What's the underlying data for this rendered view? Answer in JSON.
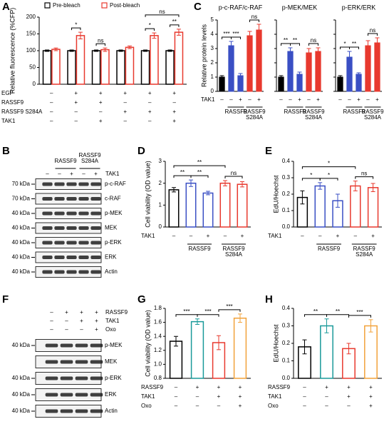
{
  "panel_labels": [
    "A",
    "B",
    "C",
    "D",
    "E",
    "F",
    "G",
    "H"
  ],
  "chart_data": [
    {
      "type": "grouped_bar",
      "ylabel": "Relative fluorescence (%CFP)",
      "ylim": [
        0,
        200
      ],
      "yticks": [
        0,
        50,
        100,
        150,
        200
      ],
      "bar_style": "outline",
      "legend": "top",
      "series": [
        {
          "name": "Pre-bleach",
          "color": "#000000",
          "values": [
            100,
            100,
            100,
            100,
            100,
            100
          ],
          "errors": [
            2,
            2,
            2,
            2,
            2,
            2
          ]
        },
        {
          "name": "Post-bleach",
          "color": "#e8392e",
          "values": [
            104,
            145,
            103,
            110,
            145,
            155
          ],
          "errors": [
            4,
            10,
            5,
            4,
            8,
            9
          ]
        }
      ],
      "rows": [
        {
          "label": "EGF",
          "values": [
            "–",
            "+",
            "+",
            "+",
            "+",
            "+"
          ]
        },
        {
          "label": "RASSF9",
          "values": [
            "–",
            "+",
            "+",
            "–",
            "–",
            "–"
          ]
        },
        {
          "label": "RASSF9 S284A",
          "values": [
            "–",
            "–",
            "–",
            "+",
            "+",
            "+"
          ]
        },
        {
          "label": "TAK1",
          "values": [
            "–",
            "–",
            "+",
            "–",
            "–",
            "+"
          ]
        }
      ],
      "comparisons": [
        {
          "between": [
            1,
            1
          ],
          "label": "*"
        },
        {
          "between": [
            2,
            2
          ],
          "label": "ns"
        },
        {
          "between": [
            4,
            4
          ],
          "label": "*"
        },
        {
          "between": [
            5,
            5
          ],
          "label": "**"
        },
        {
          "between": [
            4,
            5
          ],
          "label": "ns"
        }
      ]
    },
    {
      "type": "bar",
      "title": "p-c-RAF/c-RAF",
      "ylabel": "Relative protein levels",
      "ylim": [
        0,
        5
      ],
      "yticks": [
        0,
        1,
        2,
        3,
        4,
        5
      ],
      "tick_labels": true,
      "bar_style": "filled",
      "colors": [
        "#000000",
        "#3a4fc4",
        "#3a4fc4",
        "#e8392e",
        "#e8392e"
      ],
      "values": [
        1.0,
        3.2,
        1.1,
        3.9,
        4.3
      ],
      "errors": [
        0.1,
        0.3,
        0.15,
        0.3,
        0.4
      ],
      "rows": [
        {
          "label": "TAK1",
          "values": [
            "–",
            "–",
            "+",
            "–",
            "+"
          ]
        }
      ],
      "groups": [
        {
          "label": [
            "RASSF9"
          ],
          "span": [
            1,
            2
          ]
        },
        {
          "label": [
            "RASSF9",
            "S284A"
          ],
          "span": [
            3,
            4
          ]
        }
      ],
      "comparisons": [
        {
          "between": [
            0,
            1
          ],
          "label": "***"
        },
        {
          "between": [
            1,
            2
          ],
          "label": "***"
        },
        {
          "between": [
            3,
            4
          ],
          "label": "ns"
        }
      ]
    },
    {
      "type": "bar",
      "title": "p-MEK/MEK",
      "ylim": [
        0,
        5
      ],
      "yticks": [
        0,
        1,
        2,
        3,
        4,
        5
      ],
      "tick_labels": false,
      "bar_style": "filled",
      "colors": [
        "#000000",
        "#3a4fc4",
        "#3a4fc4",
        "#e8392e",
        "#e8392e"
      ],
      "values": [
        1.0,
        2.8,
        1.2,
        2.7,
        2.8
      ],
      "errors": [
        0.1,
        0.25,
        0.15,
        0.3,
        0.25
      ],
      "rows": [
        {
          "values": [
            "–",
            "–",
            "+",
            "–",
            "+"
          ]
        }
      ],
      "groups": [
        {
          "label": [
            "RASSF9"
          ],
          "span": [
            1,
            2
          ]
        },
        {
          "label": [
            "RASSF9",
            "S284A"
          ],
          "span": [
            3,
            4
          ]
        }
      ],
      "comparisons": [
        {
          "between": [
            0,
            1
          ],
          "label": "**"
        },
        {
          "between": [
            1,
            2
          ],
          "label": "**"
        },
        {
          "between": [
            3,
            4
          ],
          "label": "ns"
        }
      ]
    },
    {
      "type": "bar",
      "title": "p-ERK/ERK",
      "ylim": [
        0,
        5
      ],
      "yticks": [
        0,
        1,
        2,
        3,
        4,
        5
      ],
      "tick_labels": false,
      "bar_style": "filled",
      "colors": [
        "#000000",
        "#3a4fc4",
        "#3a4fc4",
        "#e8392e",
        "#e8392e"
      ],
      "values": [
        1.0,
        2.4,
        1.2,
        3.2,
        3.4
      ],
      "errors": [
        0.1,
        0.4,
        0.1,
        0.35,
        0.35
      ],
      "rows": [
        {
          "values": [
            "–",
            "–",
            "+",
            "–",
            "+"
          ]
        }
      ],
      "groups": [
        {
          "label": [
            "RASSF9"
          ],
          "span": [
            1,
            2
          ]
        },
        {
          "label": [
            "RASSF9",
            "S284A"
          ],
          "span": [
            3,
            4
          ]
        }
      ],
      "comparisons": [
        {
          "between": [
            0,
            1
          ],
          "label": "*"
        },
        {
          "between": [
            1,
            2
          ],
          "label": "**"
        },
        {
          "between": [
            3,
            4
          ],
          "label": "ns"
        }
      ]
    },
    {
      "type": "bar",
      "ylabel": "Cell viability (OD value)",
      "ylim": [
        0,
        3
      ],
      "yticks": [
        0,
        1,
        2,
        3
      ],
      "tick_labels": true,
      "bar_style": "outline",
      "colors": [
        "#000000",
        "#3a4fc4",
        "#3a4fc4",
        "#e8392e",
        "#e8392e"
      ],
      "values": [
        1.7,
        2.0,
        1.55,
        2.0,
        1.95
      ],
      "errors": [
        0.1,
        0.15,
        0.08,
        0.12,
        0.12
      ],
      "rows": [
        {
          "label": "TAK1",
          "values": [
            "–",
            "–",
            "+",
            "–",
            "+"
          ]
        }
      ],
      "groups": [
        {
          "label": [
            "RASSF9"
          ],
          "span": [
            1,
            2
          ]
        },
        {
          "label": [
            "RASSF9",
            "S284A"
          ],
          "span": [
            3,
            4
          ]
        }
      ],
      "comparisons": [
        {
          "between": [
            0,
            1
          ],
          "label": "**"
        },
        {
          "between": [
            1,
            2
          ],
          "label": "**"
        },
        {
          "between": [
            0,
            3
          ],
          "label": "**"
        },
        {
          "between": [
            3,
            4
          ],
          "label": "ns"
        }
      ]
    },
    {
      "type": "bar",
      "ylabel": "EdU/Hoechst",
      "ylim": [
        0,
        0.4
      ],
      "yticks": [
        {
          "value": 0,
          "label": "0.0"
        },
        0.1,
        0.2,
        0.3,
        0.4
      ],
      "tick_labels": true,
      "bar_style": "outline",
      "colors": [
        "#000000",
        "#3a4fc4",
        "#3a4fc4",
        "#e8392e",
        "#e8392e"
      ],
      "values": [
        0.18,
        0.25,
        0.16,
        0.25,
        0.24
      ],
      "errors": [
        0.04,
        0.02,
        0.04,
        0.03,
        0.025
      ],
      "rows": [
        {
          "label": "TAK1",
          "values": [
            "–",
            "–",
            "+",
            "–",
            "+"
          ]
        }
      ],
      "groups": [
        {
          "label": [
            "RASSF9"
          ],
          "span": [
            1,
            2
          ]
        },
        {
          "label": [
            "RASSF9",
            "S284A"
          ],
          "span": [
            3,
            4
          ]
        }
      ],
      "comparisons": [
        {
          "between": [
            0,
            1
          ],
          "label": "*"
        },
        {
          "between": [
            1,
            2
          ],
          "label": "*"
        },
        {
          "between": [
            0,
            3
          ],
          "label": "*"
        },
        {
          "between": [
            3,
            4
          ],
          "label": "ns"
        }
      ]
    },
    {
      "type": "bar",
      "ylabel": "Cell viability (OD value)",
      "ylim": [
        0.8,
        1.8
      ],
      "yticks": [
        0.8,
        {
          "value": 1,
          "label": "1.0"
        },
        1.2,
        1.4,
        1.6,
        1.8
      ],
      "tick_labels": true,
      "bar_style": "outline",
      "colors": [
        "#000000",
        "#1a9a9a",
        "#e8392e",
        "#f2a23a"
      ],
      "values": [
        1.33,
        1.61,
        1.31,
        1.66
      ],
      "errors": [
        0.07,
        0.04,
        0.1,
        0.06
      ],
      "rows": [
        {
          "label": "RASSF9",
          "values": [
            "–",
            "+",
            "+",
            "+"
          ]
        },
        {
          "label": "TAK1",
          "values": [
            "–",
            "–",
            "+",
            "+"
          ]
        },
        {
          "label": "Oxo",
          "values": [
            "–",
            "–",
            "–",
            "+"
          ]
        }
      ],
      "comparisons": [
        {
          "between": [
            0,
            1
          ],
          "label": "***"
        },
        {
          "between": [
            1,
            2
          ],
          "label": "***"
        },
        {
          "between": [
            2,
            3
          ],
          "label": "***"
        }
      ]
    },
    {
      "type": "bar",
      "ylabel": "EdU/Hoechst",
      "ylim": [
        0,
        0.4
      ],
      "yticks": [
        {
          "value": 0,
          "label": "0.0"
        },
        0.1,
        0.2,
        0.3,
        0.4
      ],
      "tick_labels": true,
      "bar_style": "outline",
      "colors": [
        "#000000",
        "#1a9a9a",
        "#e8392e",
        "#f2a23a"
      ],
      "values": [
        0.18,
        0.3,
        0.17,
        0.3
      ],
      "errors": [
        0.04,
        0.04,
        0.03,
        0.035
      ],
      "rows": [
        {
          "label": "RASSF9",
          "values": [
            "–",
            "+",
            "+",
            "+"
          ]
        },
        {
          "label": "TAK1",
          "values": [
            "–",
            "–",
            "+",
            "+"
          ]
        },
        {
          "label": "Oxo",
          "values": [
            "–",
            "–",
            "–",
            "+"
          ]
        }
      ],
      "comparisons": [
        {
          "between": [
            0,
            1
          ],
          "label": "**"
        },
        {
          "between": [
            1,
            2
          ],
          "label": "**"
        },
        {
          "between": [
            2,
            3
          ],
          "label": "***"
        }
      ]
    }
  ],
  "blots": [
    {
      "headers": [
        {
          "label": [
            "RASSF9"
          ],
          "span": [
            1,
            2
          ]
        },
        {
          "label": [
            "RASSF9",
            "S284A"
          ],
          "span": [
            3,
            4
          ]
        }
      ],
      "conditions": [
        {
          "label": "TAK1",
          "values": [
            "–",
            "–",
            "+",
            "–",
            "+"
          ]
        }
      ],
      "rows": [
        {
          "kda": "70 kDa",
          "protein": "p-c-RAF"
        },
        {
          "kda": "70 kDa",
          "protein": "c-RAF"
        },
        {
          "kda": "40 kDa",
          "protein": "p-MEK"
        },
        {
          "kda": "40 kDa",
          "protein": "MEK"
        },
        {
          "kda": "40 kDa",
          "protein": "p-ERK"
        },
        {
          "kda": "40 kDa",
          "protein": "ERK"
        },
        {
          "kda": "40 kDa",
          "protein": "Actin"
        }
      ]
    },
    {
      "conditions": [
        {
          "label": "RASSF9",
          "values": [
            "–",
            "+",
            "+",
            "+"
          ]
        },
        {
          "label": "TAK1",
          "values": [
            "–",
            "–",
            "+",
            "+"
          ]
        },
        {
          "label": "Oxo",
          "values": [
            "–",
            "–",
            "–",
            "+"
          ]
        }
      ],
      "rows": [
        {
          "kda": "40 kDa",
          "protein": "p-MEK"
        },
        {
          "kda": null,
          "protein": "MEK"
        },
        {
          "kda": "40 kDa",
          "protein": "p-ERK"
        },
        {
          "kda": "40 kDa",
          "protein": "ERK"
        },
        {
          "kda": "40 kDa",
          "protein": "Actin"
        }
      ]
    }
  ]
}
